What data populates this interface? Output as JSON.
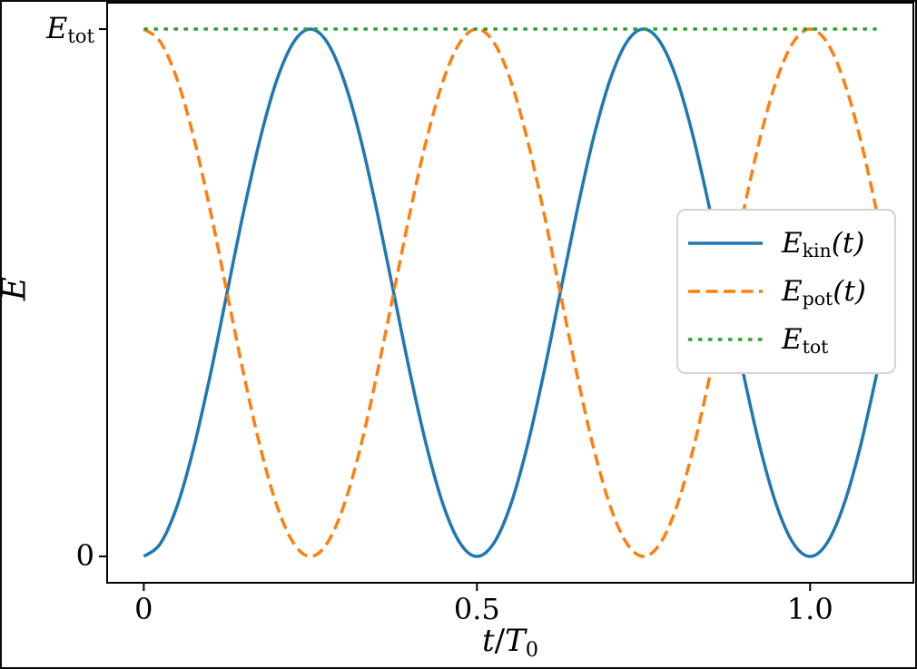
{
  "figure": {
    "background": "#ffffff",
    "spine_color": "#000000",
    "text_color": "#000000",
    "series_colors": {
      "kinetic": "#1f77b4",
      "potential": "#ff7f0e",
      "total": "#2ca02c"
    }
  },
  "chart_data": {
    "type": "line",
    "title": "",
    "xlabel": "t/T0",
    "ylabel": "E",
    "xlim": [
      -0.055,
      1.155
    ],
    "ylim": [
      -0.05,
      1.05
    ],
    "grid": false,
    "legend_position": "center right",
    "x_ticks": [
      {
        "value": 0.0,
        "label": "0"
      },
      {
        "value": 0.5,
        "label": "0.5"
      },
      {
        "value": 1.0,
        "label": "1.0"
      }
    ],
    "y_ticks": [
      {
        "value": 0.0,
        "label": "0"
      },
      {
        "value": 1.0,
        "label": "Etot"
      }
    ],
    "x": [
      0.0,
      0.025,
      0.05,
      0.075,
      0.1,
      0.125,
      0.15,
      0.175,
      0.2,
      0.225,
      0.25,
      0.275,
      0.3,
      0.325,
      0.35,
      0.375,
      0.4,
      0.425,
      0.45,
      0.475,
      0.5,
      0.525,
      0.55,
      0.575,
      0.6,
      0.625,
      0.65,
      0.675,
      0.7,
      0.725,
      0.75,
      0.775,
      0.8,
      0.825,
      0.85,
      0.875,
      0.9,
      0.925,
      0.95,
      0.975,
      1.0,
      1.025,
      1.05,
      1.075,
      1.1
    ],
    "series": [
      {
        "name": "E_kin(t)",
        "formula": "sin^2(2*pi*t/T0)",
        "color": "#1f77b4",
        "linestyle": "solid",
        "values": [
          0,
          0.0245,
          0.0955,
          0.2061,
          0.3455,
          0.5,
          0.6545,
          0.7939,
          0.9045,
          0.9755,
          1,
          0.9755,
          0.9045,
          0.7939,
          0.6545,
          0.5,
          0.3455,
          0.2061,
          0.0955,
          0.0245,
          0,
          0.0245,
          0.0955,
          0.2061,
          0.3455,
          0.5,
          0.6545,
          0.7939,
          0.9045,
          0.9755,
          1,
          0.9755,
          0.9045,
          0.7939,
          0.6545,
          0.5,
          0.3455,
          0.2061,
          0.0955,
          0.0245,
          0,
          0.0245,
          0.0955,
          0.2061,
          0.3455
        ]
      },
      {
        "name": "E_pot(t)",
        "formula": "cos^2(2*pi*t/T0)",
        "color": "#ff7f0e",
        "linestyle": "dashed",
        "values": [
          1,
          0.9755,
          0.9045,
          0.7939,
          0.6545,
          0.5,
          0.3455,
          0.2061,
          0.0955,
          0.0245,
          0,
          0.0245,
          0.0955,
          0.2061,
          0.3455,
          0.5,
          0.6545,
          0.7939,
          0.9045,
          0.9755,
          1,
          0.9755,
          0.9045,
          0.7939,
          0.6545,
          0.5,
          0.3455,
          0.2061,
          0.0955,
          0.0245,
          0,
          0.0245,
          0.0955,
          0.2061,
          0.3455,
          0.5,
          0.6545,
          0.7939,
          0.9045,
          0.9755,
          1,
          0.9755,
          0.9045,
          0.7939,
          0.6545
        ]
      },
      {
        "name": "E_tot",
        "formula": "1",
        "color": "#2ca02c",
        "linestyle": "dotted",
        "x": [
          0.0,
          1.1
        ],
        "values": [
          1.0,
          1.0
        ]
      }
    ]
  },
  "labels": {
    "ylabel": "E",
    "xlabel": {
      "num": "t",
      "slash": "/",
      "den": "T",
      "den_sub": "0"
    },
    "ytick_top": {
      "main": "E",
      "sub": "tot"
    }
  },
  "legend": {
    "entries": [
      {
        "main": "E",
        "sub": "kin",
        "suffix": "(t)",
        "color": "#1f77b4",
        "linestyle": "solid"
      },
      {
        "main": "E",
        "sub": "pot",
        "suffix": "(t)",
        "color": "#ff7f0e",
        "linestyle": "dashed"
      },
      {
        "main": "E",
        "sub": "tot",
        "suffix": "",
        "color": "#2ca02c",
        "linestyle": "dotted"
      }
    ]
  }
}
